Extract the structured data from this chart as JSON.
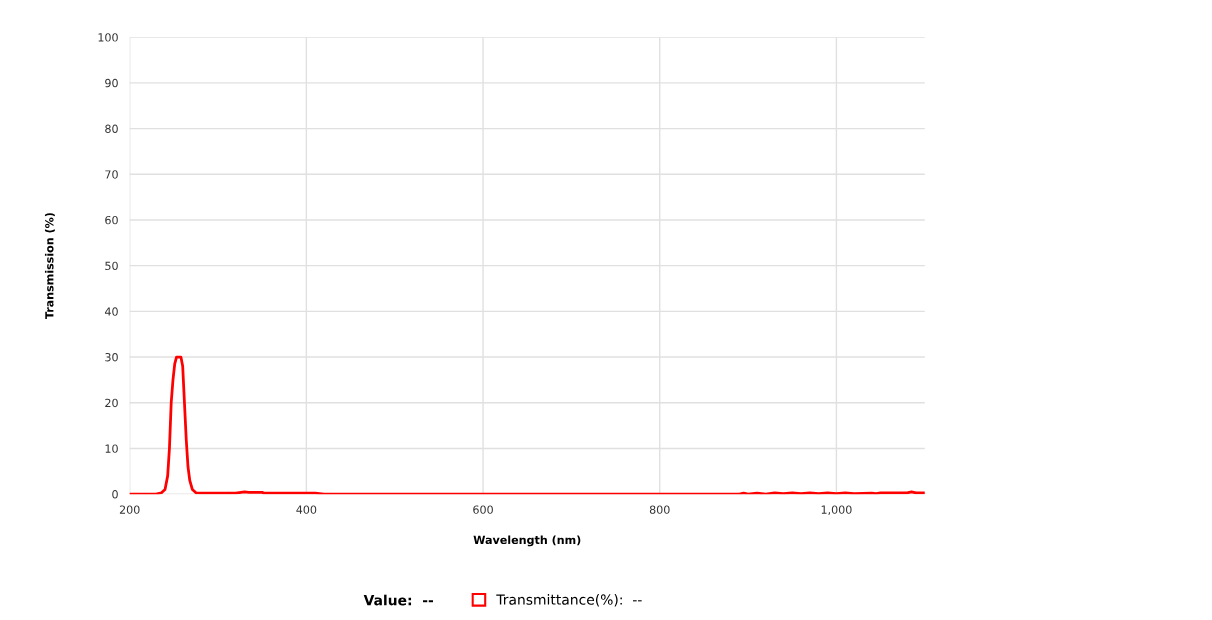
{
  "chart_data": {
    "type": "line",
    "xlabel": "Wavelength (nm)",
    "ylabel": "Transmission (%)",
    "xlim": [
      200,
      1100
    ],
    "xticks": [
      200,
      400,
      600,
      800,
      {
        "value": 1000,
        "label": "1,000"
      }
    ],
    "ylim": [
      0,
      100
    ],
    "yticks": [
      0,
      10,
      20,
      30,
      40,
      50,
      60,
      70,
      80,
      90,
      100
    ],
    "grid": true,
    "legend": "bottom",
    "marker": "none",
    "line_style": "solid",
    "annotations": [
      "Value:  --"
    ],
    "series": [
      {
        "name": "Transmittance(%):  --",
        "color": "#ff0000",
        "x": [
          200,
          230,
          236,
          240,
          243,
          245,
          247,
          249,
          251,
          253,
          258,
          260,
          262,
          264,
          266,
          268,
          271,
          275,
          280,
          320,
          330,
          335,
          350,
          352,
          410,
          415,
          420,
          890,
          895,
          900,
          910,
          920,
          930,
          940,
          950,
          960,
          970,
          980,
          990,
          1000,
          1010,
          1020,
          1040,
          1045,
          1050,
          1080,
          1085,
          1090,
          1100
        ],
        "values": [
          0,
          0,
          0.3,
          1,
          4,
          10,
          20,
          25,
          28.5,
          30,
          30,
          28,
          20,
          12,
          6,
          3,
          1,
          0.3,
          0.2,
          0.2,
          0.5,
          0.4,
          0.4,
          0.2,
          0.2,
          0.1,
          0,
          0,
          0.2,
          0,
          0.2,
          0,
          0.3,
          0.1,
          0.3,
          0.1,
          0.3,
          0.1,
          0.3,
          0.1,
          0.3,
          0.1,
          0.2,
          0.1,
          0.3,
          0.3,
          0.5,
          0.3,
          0.3
        ]
      }
    ]
  }
}
